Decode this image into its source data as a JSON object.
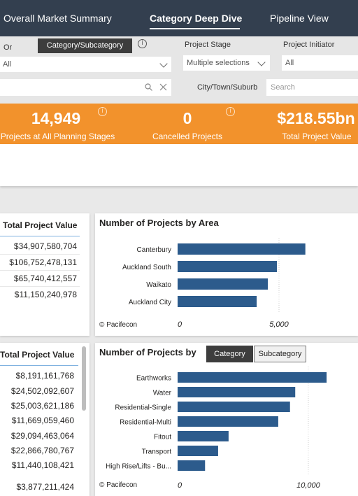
{
  "nav": {
    "tabs": [
      {
        "label": "Overall Market Summary"
      },
      {
        "label": "Category Deep Dive"
      },
      {
        "label": "Pipeline View"
      }
    ]
  },
  "filters": {
    "or_label": "Or",
    "category_button": "Category/Subcategory",
    "category_value": "All",
    "project_stage_label": "Project Stage",
    "project_stage_value": "Multiple selections",
    "project_initiator_label": "Project Initiator",
    "project_initiator_value": "All",
    "city_label": "City/Town/Suburb",
    "search_placeholder": "Search"
  },
  "kpis": [
    {
      "value": "14,949",
      "caption": "Projects at All Planning Stages"
    },
    {
      "value": "0",
      "caption": "Cancelled Projects"
    },
    {
      "value": "$218.55bn",
      "caption": "Total Project Value"
    }
  ],
  "table_area": {
    "header": "Total Project Value",
    "rows": [
      "$34,907,580,704",
      "$106,752,478,131",
      "$65,740,412,557",
      "$11,150,240,978"
    ]
  },
  "table_category": {
    "header": "Total Project Value",
    "rows": [
      "$8,191,161,768",
      "$24,502,092,607",
      "$25,003,621,186",
      "$11,669,059,460",
      "$29,094,463,064",
      "$22,866,780,767",
      "$11,440,108,421",
      "$3,877,211,424"
    ]
  },
  "chart_area": {
    "copyright": "© Pacifecon",
    "chart_data": {
      "type": "bar",
      "orientation": "horizontal",
      "title": "Number of Projects by Area",
      "categories": [
        "Canterbury",
        "Auckland South",
        "Waikato",
        "Auckland City"
      ],
      "values": [
        6300,
        4900,
        4450,
        3900
      ],
      "xticks": [
        "0",
        "5,000"
      ],
      "xlim": [
        0,
        7000
      ],
      "grid": true,
      "color": "#2c5b8c"
    }
  },
  "chart_category": {
    "toggle_options": [
      "Category",
      "Subcategory"
    ],
    "copyright": "© Pacifecon",
    "chart_data": {
      "type": "bar",
      "orientation": "horizontal",
      "title": "Number of Projects by",
      "categories": [
        "Earthworks",
        "Water",
        "Residential-Single",
        "Residential-Multi",
        "Fitout",
        "Transport",
        "High Rise/Lifts - Bu..."
      ],
      "values": [
        11400,
        9000,
        8600,
        7700,
        3900,
        3100,
        2100
      ],
      "xticks": [
        "0",
        "10,000"
      ],
      "xlim": [
        0,
        13000
      ],
      "grid": true,
      "color": "#2c5b8c"
    }
  }
}
